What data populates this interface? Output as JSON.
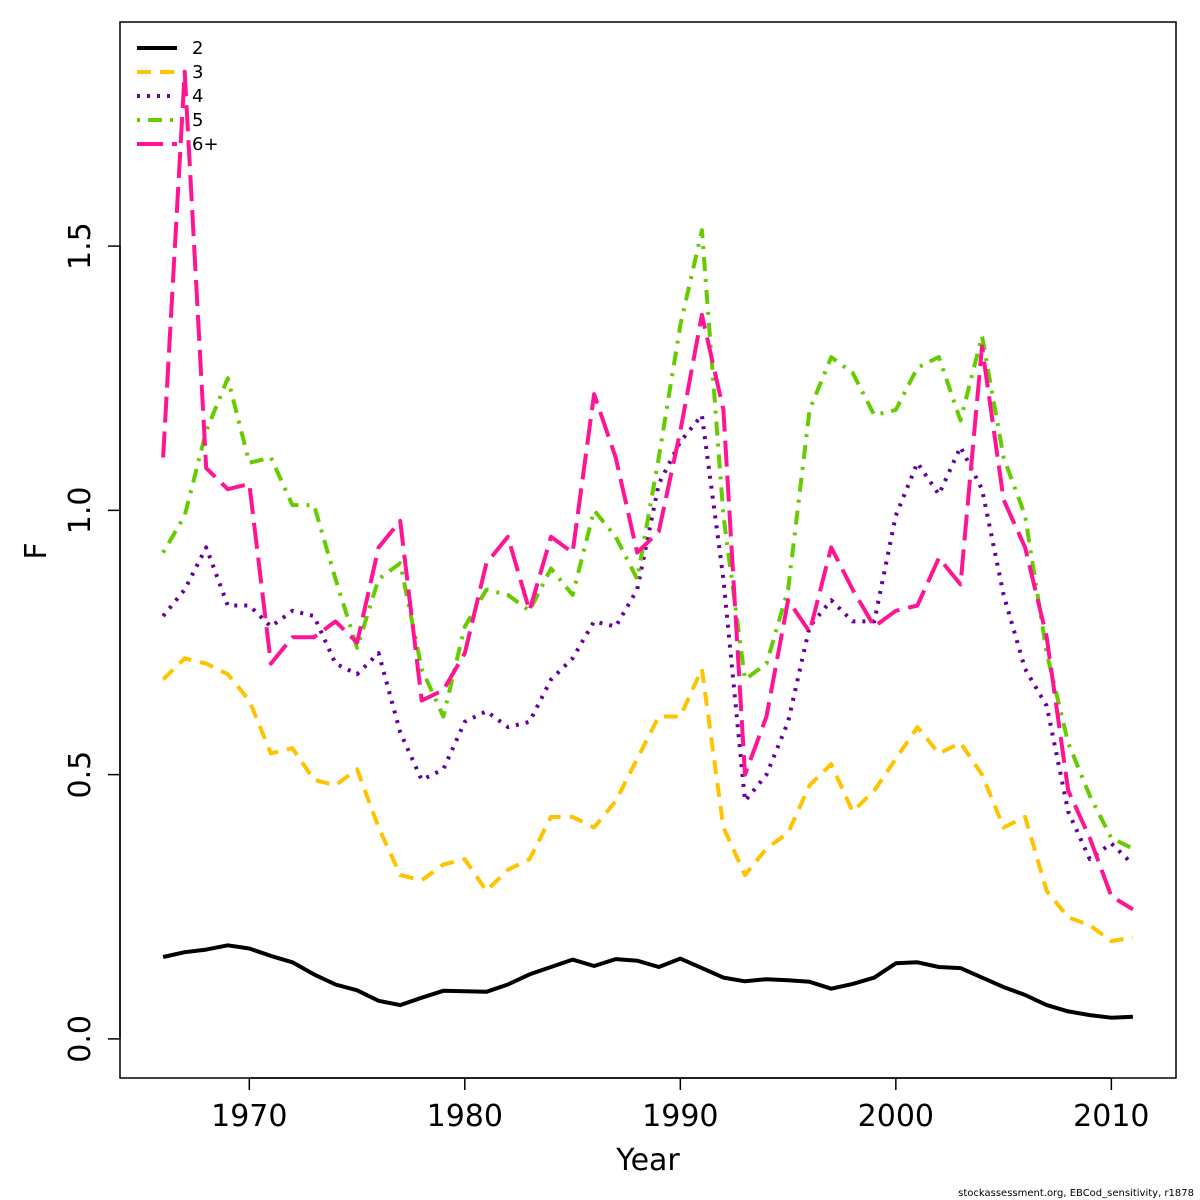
{
  "chart_data": {
    "type": "line",
    "title": "",
    "xlabel": "Year",
    "ylabel": "F",
    "xlim": [
      1964,
      2013
    ],
    "ylim": [
      0,
      1.85
    ],
    "xticks": [
      1970,
      1980,
      1990,
      2000,
      2010
    ],
    "xtick_labels": [
      "1970",
      "1980",
      "1990",
      "2000",
      "2010"
    ],
    "yticks": [
      0,
      0.5,
      1.0,
      1.5
    ],
    "ytick_labels": [
      "0.0",
      "0.5",
      "1.0",
      "1.5"
    ],
    "legend_position": "top-left",
    "grid": false,
    "x": [
      1966,
      1967,
      1968,
      1969,
      1970,
      1971,
      1972,
      1973,
      1974,
      1975,
      1976,
      1977,
      1978,
      1979,
      1980,
      1981,
      1982,
      1983,
      1984,
      1985,
      1986,
      1987,
      1988,
      1989,
      1990,
      1991,
      1992,
      1993,
      1994,
      1995,
      1996,
      1997,
      1998,
      1999,
      2000,
      2001,
      2002,
      2003,
      2004,
      2005,
      2006,
      2007,
      2008,
      2009,
      2010,
      2011
    ],
    "series": [
      {
        "name": "2",
        "color": "#000000",
        "dash": "solid",
        "values": [
          0.155,
          0.164,
          0.169,
          0.177,
          0.171,
          0.157,
          0.145,
          0.122,
          0.103,
          0.092,
          0.072,
          0.064,
          0.078,
          0.091,
          0.09,
          0.089,
          0.103,
          0.122,
          0.136,
          0.15,
          0.138,
          0.151,
          0.148,
          0.136,
          0.152,
          0.134,
          0.116,
          0.109,
          0.113,
          0.111,
          0.108,
          0.095,
          0.104,
          0.116,
          0.143,
          0.145,
          0.136,
          0.134,
          0.116,
          0.098,
          0.083,
          0.064,
          0.052,
          0.045,
          0.04,
          0.042
        ]
      },
      {
        "name": "3",
        "color": "#FFC300",
        "dash": "dashed",
        "values": [
          0.68,
          0.72,
          0.71,
          0.69,
          0.64,
          0.54,
          0.55,
          0.49,
          0.48,
          0.51,
          0.4,
          0.31,
          0.3,
          0.33,
          0.34,
          0.28,
          0.32,
          0.34,
          0.42,
          0.42,
          0.4,
          0.45,
          0.53,
          0.61,
          0.61,
          0.7,
          0.4,
          0.31,
          0.36,
          0.39,
          0.48,
          0.52,
          0.43,
          0.47,
          0.53,
          0.59,
          0.54,
          0.56,
          0.5,
          0.4,
          0.42,
          0.28,
          0.23,
          0.215,
          0.185,
          0.192
        ]
      },
      {
        "name": "4",
        "color": "#660099",
        "dash": "dotted",
        "values": [
          0.8,
          0.85,
          0.93,
          0.82,
          0.82,
          0.78,
          0.81,
          0.8,
          0.71,
          0.69,
          0.73,
          0.58,
          0.49,
          0.51,
          0.6,
          0.62,
          0.59,
          0.6,
          0.68,
          0.72,
          0.79,
          0.78,
          0.85,
          1.05,
          1.13,
          1.18,
          0.87,
          0.45,
          0.5,
          0.6,
          0.78,
          0.83,
          0.79,
          0.79,
          0.99,
          1.09,
          1.03,
          1.12,
          1.04,
          0.84,
          0.7,
          0.63,
          0.43,
          0.34,
          0.37,
          0.33
        ]
      },
      {
        "name": "5",
        "color": "#66CC00",
        "dash": "dotdash",
        "values": [
          0.92,
          0.99,
          1.15,
          1.25,
          1.09,
          1.1,
          1.01,
          1.01,
          0.87,
          0.74,
          0.87,
          0.9,
          0.7,
          0.61,
          0.78,
          0.85,
          0.84,
          0.81,
          0.89,
          0.84,
          1.0,
          0.95,
          0.87,
          1.1,
          1.35,
          1.53,
          0.99,
          0.68,
          0.71,
          0.85,
          1.19,
          1.29,
          1.26,
          1.18,
          1.19,
          1.27,
          1.29,
          1.17,
          1.33,
          1.1,
          0.99,
          0.73,
          0.56,
          0.46,
          0.38,
          0.36
        ]
      },
      {
        "name": "6+",
        "color": "#FF1493",
        "dash": "longdash",
        "values": [
          1.1,
          1.83,
          1.08,
          1.04,
          1.05,
          0.71,
          0.76,
          0.76,
          0.79,
          0.75,
          0.93,
          0.98,
          0.64,
          0.66,
          0.73,
          0.9,
          0.95,
          0.81,
          0.95,
          0.92,
          1.22,
          1.1,
          0.92,
          0.96,
          1.15,
          1.37,
          1.19,
          0.5,
          0.61,
          0.83,
          0.77,
          0.93,
          0.85,
          0.78,
          0.81,
          0.82,
          0.91,
          0.86,
          1.31,
          1.02,
          0.93,
          0.76,
          0.47,
          0.38,
          0.27,
          0.245
        ]
      }
    ]
  },
  "footer": {
    "credit": "stockassessment.org, EBCod_sensitivity, r1878"
  }
}
